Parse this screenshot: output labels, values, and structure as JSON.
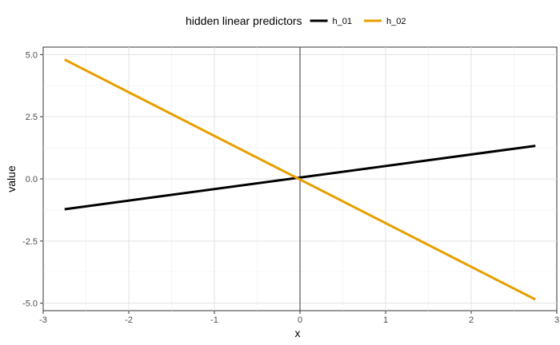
{
  "chart_data": {
    "type": "line",
    "legend": {
      "title": "hidden linear predictors",
      "position": "top"
    },
    "xlabel": "x",
    "ylabel": "value",
    "xlim": [
      -3,
      3
    ],
    "ylim": [
      -5.3,
      5.3
    ],
    "x_ticks": [
      -3,
      -2,
      -1,
      0,
      1,
      2,
      3
    ],
    "x_tick_labels": [
      "-3",
      "-2",
      "-1",
      "0",
      "1",
      "2",
      "3"
    ],
    "y_ticks": [
      -5,
      -2.5,
      0,
      2.5,
      5
    ],
    "y_tick_labels": [
      "-5.0",
      "-2.5",
      "0.0",
      "2.5",
      "5.0"
    ],
    "grid": true,
    "reference_line": {
      "x": 0,
      "color": "#555555"
    },
    "series": [
      {
        "name": "h_01",
        "color": "#000000",
        "x": [
          -2.75,
          2.75
        ],
        "values": [
          -1.22,
          1.33
        ]
      },
      {
        "name": "h_02",
        "color": "#E69F00",
        "x": [
          -2.75,
          2.75
        ],
        "values": [
          4.8,
          -4.85
        ]
      }
    ]
  }
}
